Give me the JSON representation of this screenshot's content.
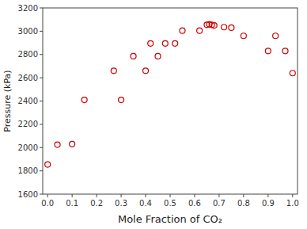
{
  "chart_data": {
    "type": "scatter",
    "x": [
      0.0,
      0.04,
      0.1,
      0.15,
      0.27,
      0.3,
      0.35,
      0.4,
      0.42,
      0.45,
      0.48,
      0.52,
      0.55,
      0.62,
      0.65,
      0.66,
      0.67,
      0.68,
      0.72,
      0.75,
      0.8,
      0.9,
      0.93,
      0.97,
      1.0
    ],
    "y": [
      1855,
      2025,
      2030,
      2410,
      2660,
      2410,
      2785,
      2660,
      2895,
      2785,
      2895,
      2895,
      3005,
      3005,
      3055,
      3060,
      3055,
      3050,
      3035,
      3030,
      2960,
      2830,
      2960,
      2830,
      2640
    ],
    "xlabel": "Mole Fraction of CO₂",
    "ylabel": "Pressure (kPa)",
    "xlim": [
      -0.02,
      1.02
    ],
    "ylim": [
      1600,
      3200
    ],
    "xticks": [
      {
        "value": 0.0,
        "label": "0.0"
      },
      0.1,
      0.2,
      0.3,
      0.4,
      0.5,
      0.6,
      0.7,
      0.8,
      0.9,
      {
        "value": 1.0,
        "label": "1.0"
      }
    ],
    "yticks": [
      1600,
      1800,
      2000,
      2200,
      2400,
      2600,
      2800,
      3000,
      3200
    ],
    "color": "#cc0000",
    "marker": "circle"
  }
}
